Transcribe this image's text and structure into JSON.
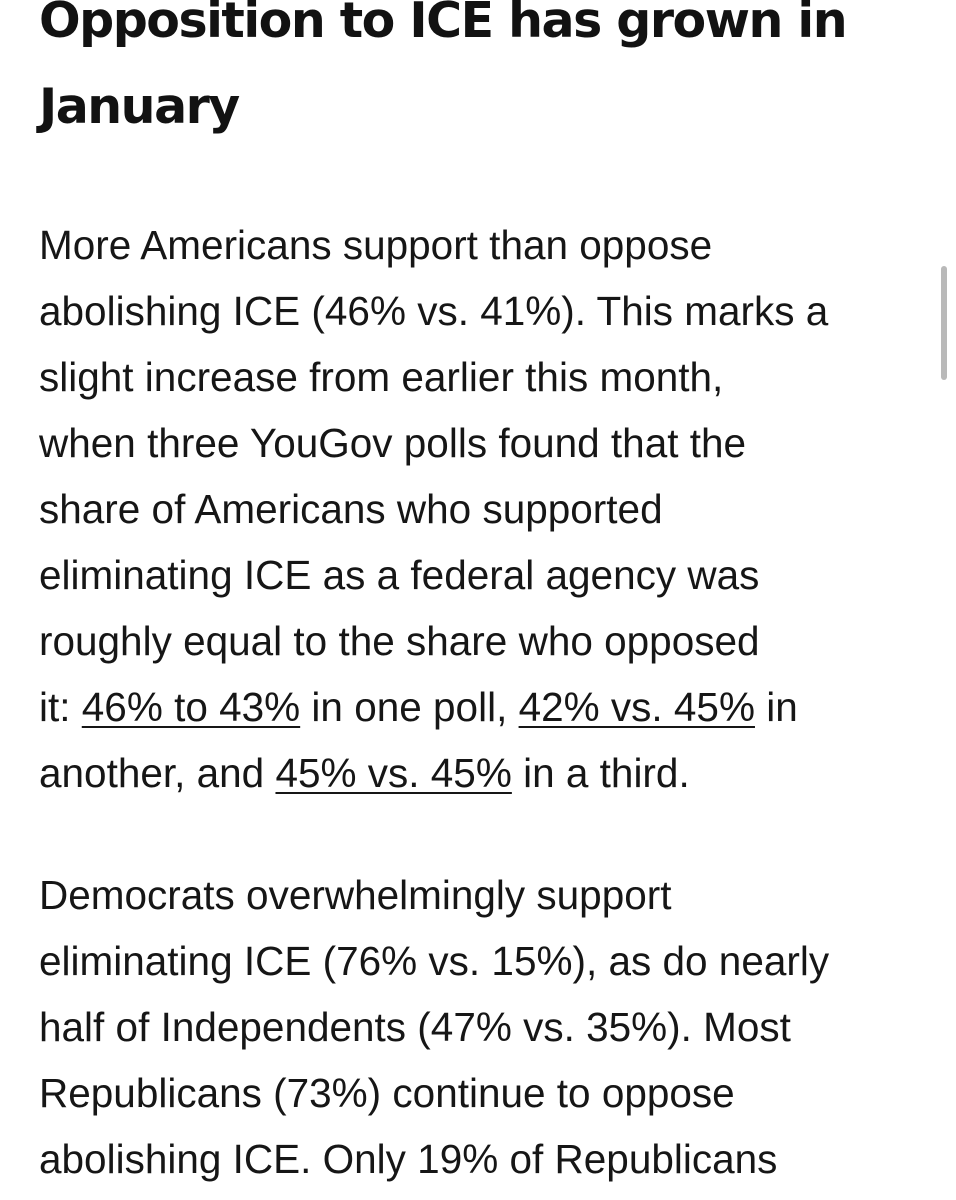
{
  "article": {
    "headline": {
      "line1": "Opposition to ICE has grown in",
      "line2": "January"
    },
    "paragraph1": {
      "l1": "More Americans support than oppose",
      "l2": "abolishing ICE (46% vs. 41%). This marks a",
      "l3": "slight increase from earlier this month,",
      "l4": "when three YouGov polls found that the",
      "l5": "share of Americans who supported",
      "l6": "eliminating ICE as a federal agency was",
      "l7": "roughly equal to the share who opposed",
      "l8_start": "it: ",
      "link1": "46% to 43%",
      "l8_mid": " in one poll, ",
      "link2": "42% vs. 45%",
      "l8_end": " in",
      "l9_start": "another, and ",
      "link3": "45% vs. 45%",
      "l9_end": " in a third."
    },
    "paragraph2": {
      "l1": "Democrats overwhelmingly support",
      "l2": "eliminating ICE (76% vs. 15%), as do nearly",
      "l3": "half of Independents (47% vs. 35%). Most",
      "l4": "Republicans (73%) continue to oppose",
      "l5": "abolishing ICE. Only 19% of Republicans"
    }
  }
}
